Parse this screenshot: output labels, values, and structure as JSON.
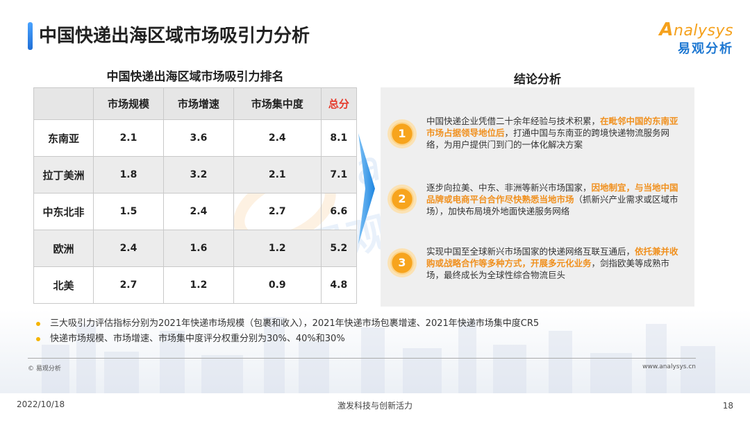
{
  "header": {
    "title": "中国快递出海区域市场吸引力分析"
  },
  "logo": {
    "en": "nalysys",
    "en_initial": "A",
    "cn": "易观分析"
  },
  "table": {
    "title": "中国快递出海区域市场吸引力排名",
    "columns": [
      "",
      "市场规模",
      "市场增速",
      "市场集中度",
      "总分"
    ],
    "rows": [
      {
        "region": "东南亚",
        "values": [
          "2.1",
          "3.6",
          "2.4",
          "8.1"
        ]
      },
      {
        "region": "拉丁美洲",
        "values": [
          "1.8",
          "3.2",
          "2.1",
          "7.1"
        ]
      },
      {
        "region": "中东北非",
        "values": [
          "1.5",
          "2.4",
          "2.7",
          "6.6"
        ]
      },
      {
        "region": "欧洲",
        "values": [
          "2.4",
          "1.6",
          "1.2",
          "5.2"
        ]
      },
      {
        "region": "北美",
        "values": [
          "2.7",
          "1.2",
          "0.9",
          "4.8"
        ]
      }
    ]
  },
  "conclusion": {
    "title": "结论分析",
    "items": [
      {
        "num": "1",
        "pre": "中国快递企业凭借二十余年经验与技术积累，",
        "hl": "在毗邻中国的东南亚市场占据领导地位后",
        "post": "，打通中国与东南亚的跨境快递物流服务网络，为用户提供门到门的一体化解决方案"
      },
      {
        "num": "2",
        "pre": "逐步向拉美、中东、非洲等新兴市场国家，",
        "hl": "因地制宜，与当地中国品牌或电商平台合作尽快熟悉当地市场",
        "post": "（抓新兴产业需求或区域市场），加快布局境外地面快递服务网络"
      },
      {
        "num": "3",
        "pre": "实现中国至全球新兴市场国家的快递网络互联互通后，",
        "hl": "依托兼并收购或战略合作等多种方式，开展多元化业务",
        "post": "，剑指欧美等成熟市场，最终成长为全球性综合物流巨头"
      }
    ]
  },
  "notes": [
    "三大吸引力评估指标分别为2021年快递市场规模（包裹和收入），2021年快递市场包裹增速、2021年快递市场集中度CR5",
    "快递市场规模、市场增速、市场集中度评分权重分别为30%、40%和30%"
  ],
  "footer": {
    "copyright": "© 易观分析",
    "website": "www.analysys.cn",
    "date": "2022/10/18",
    "slogan": "激发科技与创新活力",
    "page": "18"
  },
  "colors": {
    "accent": "#f5a11c",
    "highlight": "#f0901e",
    "total": "#e53a2b",
    "brand_blue": "#1e78d2"
  }
}
